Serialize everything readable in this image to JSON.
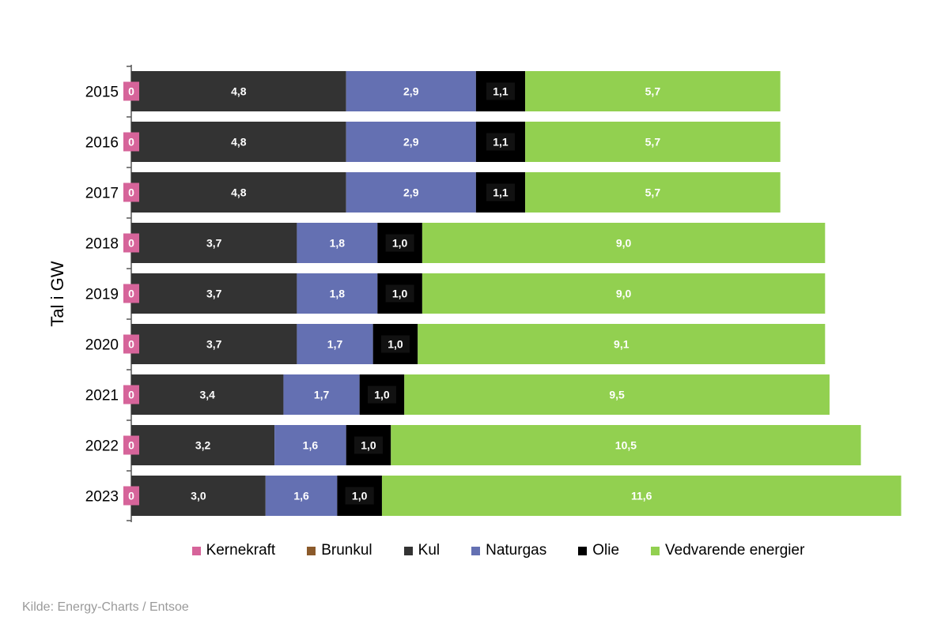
{
  "chart_data": {
    "type": "bar",
    "orientation": "horizontal",
    "stacked": true,
    "ylabel": "Tal i GW",
    "categories": [
      "2015",
      "2016",
      "2017",
      "2018",
      "2019",
      "2020",
      "2021",
      "2022",
      "2023"
    ],
    "series": [
      {
        "name": "Kernekraft",
        "color": "#d6649a",
        "values": [
          0,
          0,
          0,
          0,
          0,
          0,
          0,
          0,
          0
        ]
      },
      {
        "name": "Brunkul",
        "color": "#8b5a2b",
        "values": [
          0,
          0,
          0,
          0,
          0,
          0,
          0,
          0,
          0
        ]
      },
      {
        "name": "Kul",
        "color": "#333333",
        "values": [
          4.8,
          4.8,
          4.8,
          3.7,
          3.7,
          3.7,
          3.4,
          3.2,
          3.0
        ]
      },
      {
        "name": "Naturgas",
        "color": "#6470b2",
        "values": [
          2.9,
          2.9,
          2.9,
          1.8,
          1.8,
          1.7,
          1.7,
          1.6,
          1.6
        ]
      },
      {
        "name": "Olie",
        "color": "#000000",
        "values": [
          1.1,
          1.1,
          1.1,
          1.0,
          1.0,
          1.0,
          1.0,
          1.0,
          1.0
        ]
      },
      {
        "name": "Vedvarende energier",
        "color": "#92d050",
        "values": [
          5.7,
          5.7,
          5.7,
          9.0,
          9.0,
          9.1,
          9.5,
          10.5,
          11.6
        ]
      }
    ],
    "data_labels": {
      "Kernekraft": [
        "0",
        "0",
        "0",
        "0",
        "0",
        "0",
        "0",
        "0",
        "0"
      ],
      "Kul": [
        "4,8",
        "4,8",
        "4,8",
        "3,7",
        "3,7",
        "3,7",
        "3,4",
        "3,2",
        "3,0"
      ],
      "Naturgas": [
        "2,9",
        "2,9",
        "2,9",
        "1,8",
        "1,8",
        "1,7",
        "1,7",
        "1,6",
        "1,6"
      ],
      "Olie": [
        "1,1",
        "1,1",
        "1,1",
        "1,0",
        "1,0",
        "1,0",
        "1,0",
        "1,0",
        "1,0"
      ],
      "Vedvarende energier": [
        "5,7",
        "5,7",
        "5,7",
        "9,0",
        "9,0",
        "9,1",
        "9,5",
        "10,5",
        "11,6"
      ]
    },
    "legend_position": "bottom",
    "grid": false
  },
  "source": "Kilde: Energy-Charts / Entsoe"
}
